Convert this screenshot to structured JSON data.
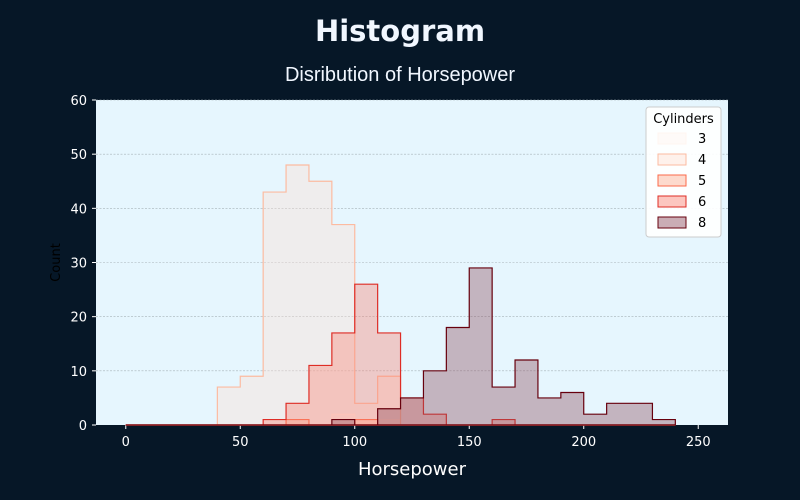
{
  "page": {
    "title": "Histogram",
    "subtitle": "Disribution of Horsepower"
  },
  "chart_data": {
    "type": "histogram",
    "title": "Histogram",
    "subtitle": "Disribution of Horsepower",
    "xlabel": "Horsepower",
    "ylabel": "Count",
    "xlim": [
      -13,
      263
    ],
    "ylim": [
      0,
      60
    ],
    "xticks": [
      0,
      50,
      100,
      150,
      200,
      250
    ],
    "yticks": [
      0,
      10,
      20,
      30,
      40,
      50,
      60
    ],
    "grid": "horizontal",
    "bins": [
      0,
      10,
      20,
      30,
      40,
      50,
      60,
      70,
      80,
      90,
      100,
      110,
      120,
      130,
      140,
      150,
      160,
      170,
      180,
      190,
      200,
      210,
      220,
      230,
      240
    ],
    "legend": {
      "title": "Cylinders",
      "position": "top-right"
    },
    "series": [
      {
        "name": "3",
        "color": "#fff5f0",
        "stroke": "#fff5f0",
        "values": [
          0,
          0,
          0,
          0,
          0,
          0,
          0,
          0,
          0,
          2,
          1,
          1,
          0,
          0,
          0,
          0,
          0,
          0,
          0,
          0,
          0,
          0,
          0,
          0
        ]
      },
      {
        "name": "4",
        "color": "#fee0d2",
        "stroke": "#fcbba1",
        "values": [
          0,
          0,
          0,
          0,
          7,
          9,
          43,
          48,
          45,
          37,
          4,
          9,
          0,
          0,
          0,
          0,
          0,
          0,
          0,
          0,
          0,
          0,
          0,
          0
        ]
      },
      {
        "name": "5",
        "color": "#fcae91",
        "stroke": "#fb6a4a",
        "values": [
          0,
          0,
          0,
          0,
          0,
          0,
          0,
          1,
          0,
          0,
          1,
          0,
          0,
          0,
          0,
          0,
          0,
          0,
          0,
          0,
          0,
          0,
          0,
          0
        ]
      },
      {
        "name": "6",
        "color": "#fb8072",
        "stroke": "#de2d26",
        "values": [
          0,
          0,
          0,
          0,
          0,
          0,
          1,
          4,
          11,
          17,
          26,
          17,
          5,
          2,
          0,
          0,
          1,
          0,
          0,
          0,
          0,
          0,
          0,
          0
        ]
      },
      {
        "name": "8",
        "color": "#8c4a5a",
        "stroke": "#67000d",
        "values": [
          0,
          0,
          0,
          0,
          0,
          0,
          0,
          0,
          0,
          1,
          0,
          3,
          5,
          10,
          18,
          29,
          7,
          12,
          5,
          6,
          2,
          4,
          4,
          1
        ]
      }
    ]
  }
}
